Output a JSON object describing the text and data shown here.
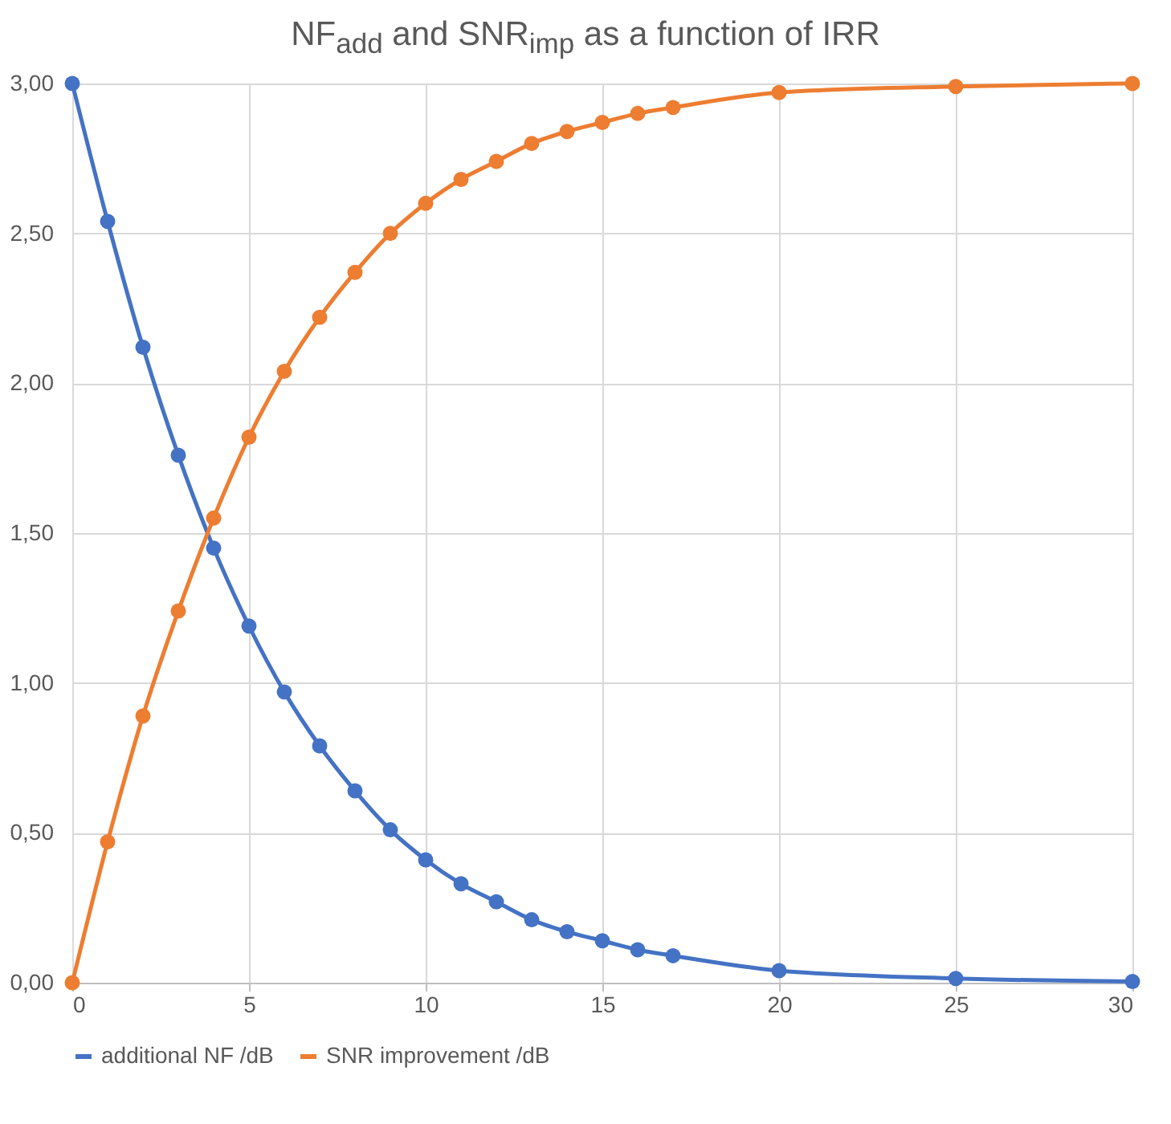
{
  "chart_data": {
    "type": "line",
    "title": "NF$_{add}$ and SNR$_{imp}$ as a function of IRR",
    "x": [
      0,
      1,
      2,
      3,
      4,
      5,
      6,
      7,
      8,
      9,
      10,
      11,
      12,
      13,
      14,
      15,
      16,
      17,
      20,
      25,
      30
    ],
    "series": [
      {
        "name": "additional NF /dB",
        "color": "#4472c4",
        "values": [
          3.0,
          2.54,
          2.12,
          1.76,
          1.45,
          1.19,
          0.97,
          0.79,
          0.64,
          0.51,
          0.41,
          0.33,
          0.27,
          0.21,
          0.17,
          0.14,
          0.11,
          0.09,
          0.04,
          0.014,
          0.004
        ]
      },
      {
        "name": "SNR improvement /dB",
        "color": "#ed7d31",
        "values": [
          0.0,
          0.47,
          0.89,
          1.24,
          1.55,
          1.82,
          2.04,
          2.22,
          2.37,
          2.5,
          2.6,
          2.68,
          2.74,
          2.8,
          2.84,
          2.87,
          2.9,
          2.92,
          2.97,
          2.99,
          3.0
        ]
      }
    ],
    "xlim": [
      0,
      30
    ],
    "xticks": [
      0,
      5,
      10,
      15,
      20,
      25,
      30
    ],
    "ylim": [
      0,
      3
    ],
    "yticks": [
      {
        "value": 0,
        "label": "0,00"
      },
      {
        "value": 0.5,
        "label": "0,50"
      },
      {
        "value": 1,
        "label": "1,00"
      },
      {
        "value": 1.5,
        "label": "1,50"
      },
      {
        "value": 2,
        "label": "2,00"
      },
      {
        "value": 2.5,
        "label": "2,50"
      },
      {
        "value": 3,
        "label": "3,00"
      }
    ],
    "grid": true,
    "legend": "bottom",
    "marker": "circle",
    "line_style": "solid"
  }
}
